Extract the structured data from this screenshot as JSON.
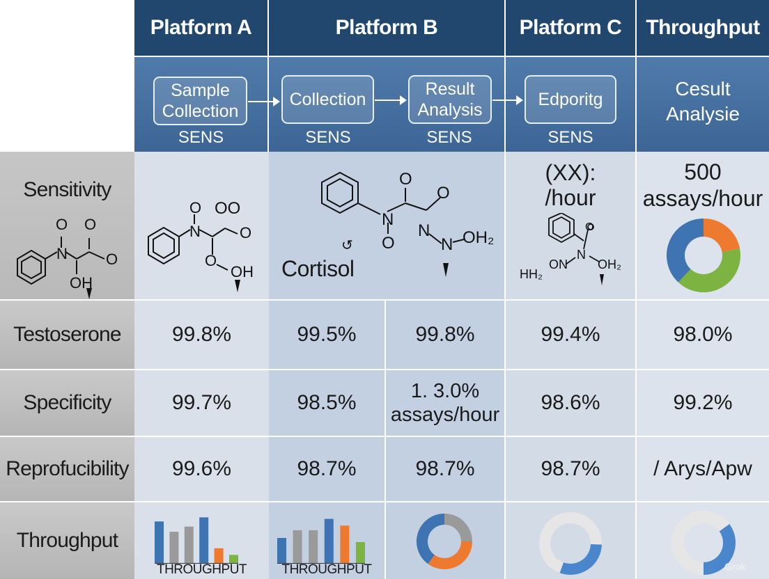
{
  "header": {
    "columns": [
      "Platform A",
      "Platform B",
      "Platform C",
      "Throughput"
    ]
  },
  "workflow": {
    "stages": [
      {
        "label": "Sample\nCollection",
        "tag": "SENS"
      },
      {
        "label": "Collection",
        "tag": "SENS"
      },
      {
        "label": "Result\nAnalysis",
        "tag": "SENS"
      },
      {
        "label": "Edporitg",
        "tag": "SENS"
      }
    ],
    "throughput_label": "Cesult\nAnalysie"
  },
  "rows": {
    "labels": [
      "Sensitivity",
      "Testoserone",
      "Specificity",
      "Reprofucibility",
      "Throughput"
    ]
  },
  "sensitivity_row": {
    "cortisol_label": "Cortisol",
    "platform_c_text": "(XX):\n/hour",
    "throughput_text": "500\nassays/hour",
    "throughput_donut": [
      {
        "fraction": 0.22,
        "color": "#ee7a2f"
      },
      {
        "fraction": 0.4,
        "color": "#7db341"
      },
      {
        "fraction": 0.38,
        "color": "#3e74b2"
      }
    ],
    "chem_labels": {
      "left_o1": "O",
      "left_o2": "O",
      "left_o3": "O",
      "left_n": "N",
      "left_oh": "OH",
      "a_o1": "O",
      "a_oo": "OO",
      "a_n": "N",
      "a_o2": "O",
      "a_o3": "O",
      "a_oh": "OH",
      "b_o1": "O",
      "b_o2": "O",
      "b_n": "N",
      "b_o3": "O",
      "b_n2": "N",
      "b_n3": "N",
      "b_oh2": "OH₂",
      "c_o": "O",
      "c_n": "N",
      "c_hh2": "HH₂",
      "c_on": "ON",
      "c_oh2": "OH₂"
    }
  },
  "values": {
    "testosterone": [
      "99.8%",
      "99.5%",
      "99.8%",
      "99.4%",
      "98.0%"
    ],
    "specificity": [
      "99.7%",
      "98.5%",
      "1. 3.0%\nassays/hour",
      "98.6%",
      "99.2%"
    ],
    "reproducibility": [
      "99.6%",
      "98.7%",
      "98.7%",
      "98.7%",
      "/ Arys/Apw"
    ]
  },
  "throughput_row": {
    "caption_a": "THROUGHPUT",
    "caption_b": "THROUGHPUT",
    "bars_a": [
      {
        "value": 0.82,
        "color": "#3e74b2"
      },
      {
        "value": 0.62,
        "color": "#9a9a9a"
      },
      {
        "value": 0.72,
        "color": "#9a9a9a"
      },
      {
        "value": 0.9,
        "color": "#3e74b2"
      },
      {
        "value": 0.3,
        "color": "#ee7a2f"
      },
      {
        "value": 0.17,
        "color": "#7db341"
      }
    ],
    "bars_b": [
      {
        "value": 0.5,
        "color": "#3e74b2"
      },
      {
        "value": 0.65,
        "color": "#9a9a9a"
      },
      {
        "value": 0.65,
        "color": "#9a9a9a"
      },
      {
        "value": 0.87,
        "color": "#3e74b2"
      },
      {
        "value": 0.74,
        "color": "#ee7a2f"
      },
      {
        "value": 0.42,
        "color": "#7db341"
      }
    ],
    "donut_b": [
      {
        "fraction": 0.25,
        "color": "#9a9a9a"
      },
      {
        "fraction": 0.35,
        "color": "#ee7a2f"
      },
      {
        "fraction": 0.4,
        "color": "#3e74b2"
      }
    ],
    "donut_c": [
      {
        "fraction": 0.7,
        "color": "#e6e6e6"
      },
      {
        "fraction": 0.3,
        "color": "#4a86cc"
      }
    ],
    "donut_d": [
      {
        "fraction": 0.65,
        "color": "#e6e6e6"
      },
      {
        "fraction": 0.35,
        "color": "#4a86cc"
      }
    ]
  },
  "watermark": "Grok"
}
